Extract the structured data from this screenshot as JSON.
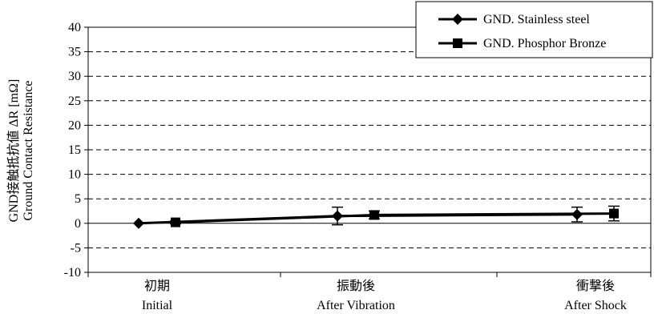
{
  "chart_data": {
    "type": "line",
    "title": "",
    "ylabel_lines": [
      "GND接触抵抗値 ΔR [mΩ]",
      "Ground Contact Resistance"
    ],
    "categories": [
      {
        "jp": "初期",
        "en": "Initial"
      },
      {
        "jp": "振動後",
        "en": "After Vibration"
      },
      {
        "jp": "衝撃後",
        "en": "After Shock"
      }
    ],
    "ylim": [
      -10,
      40
    ],
    "yticks": [
      -10,
      -5,
      0,
      5,
      10,
      15,
      20,
      25,
      30,
      35,
      40
    ],
    "grid": "horizontal-dashed",
    "legend_position": "top-right",
    "series": [
      {
        "name": "GND. Stainless steel",
        "marker": "diamond",
        "values": [
          0,
          1.5,
          1.8
        ],
        "error": [
          0,
          1.8,
          1.5
        ]
      },
      {
        "name": "GND. Phosphor Bronze",
        "marker": "square",
        "values": [
          0.2,
          1.7,
          2.0
        ],
        "error": [
          0.3,
          0.8,
          1.5
        ]
      }
    ],
    "colors": {
      "line": "#000000",
      "grid": "#000000",
      "background": "#ffffff"
    }
  }
}
